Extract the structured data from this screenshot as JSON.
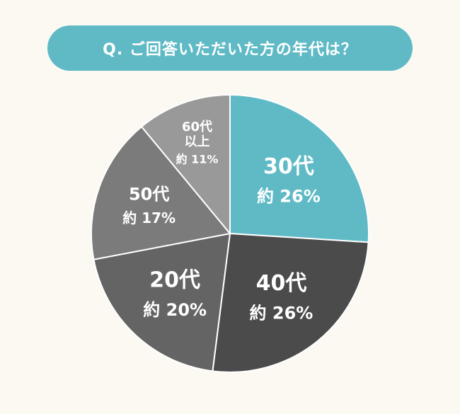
{
  "title": "Q. ご回答いただいた方の年代は？",
  "colors": {
    "header_bg": "#5fbac6",
    "background": "#fcf9f2"
  },
  "chart_data": {
    "type": "pie",
    "title": "Q. ご回答いただいた方の年代は？",
    "slices": [
      {
        "label": "30代",
        "value": 26,
        "value_text": "約 26%",
        "color": "#5fbac6"
      },
      {
        "label": "40代",
        "value": 26,
        "value_text": "約 26%",
        "color": "#4b4b4b"
      },
      {
        "label": "20代",
        "value": 20,
        "value_text": "約 20%",
        "color": "#646464"
      },
      {
        "label": "50代",
        "value": 17,
        "value_text": "約 17%",
        "color": "#7b7b7b"
      },
      {
        "label": "60代以上",
        "label_lines": [
          "60代",
          "以上"
        ],
        "value": 11,
        "value_text": "約 11%",
        "color": "#999999"
      }
    ],
    "start_angle_deg": 0,
    "direction": "clockwise",
    "legend": "none"
  }
}
